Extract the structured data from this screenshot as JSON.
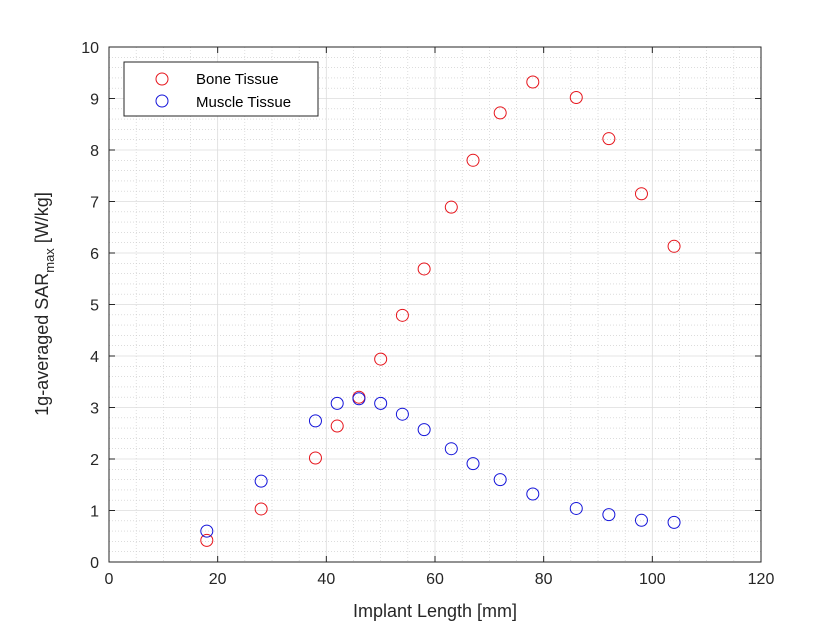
{
  "chart_data": {
    "type": "scatter",
    "xlabel": "Implant Length [mm]",
    "ylabel": {
      "main": "1g-averaged SAR",
      "subscript": "max",
      "unit": " [W/kg]"
    },
    "xlim": [
      0,
      120
    ],
    "ylim": [
      0,
      10
    ],
    "xticks": [
      0,
      20,
      40,
      60,
      80,
      100,
      120
    ],
    "yticks": [
      0,
      1,
      2,
      3,
      4,
      5,
      6,
      7,
      8,
      9,
      10
    ],
    "grid": true,
    "minor_grid": true,
    "legend_position": "top-left",
    "series": [
      {
        "name": "Bone Tissue",
        "color": "#e6141b",
        "marker": "circle",
        "x": [
          18,
          28,
          38,
          42,
          46,
          50,
          54,
          58,
          63,
          67,
          72,
          78,
          86,
          92,
          98,
          104
        ],
        "y": [
          0.42,
          1.03,
          2.02,
          2.64,
          3.2,
          3.94,
          4.79,
          5.69,
          6.89,
          7.8,
          8.72,
          9.32,
          9.02,
          8.22,
          7.15,
          6.13
        ]
      },
      {
        "name": "Muscle Tissue",
        "color": "#1414d9",
        "marker": "circle",
        "x": [
          18,
          28,
          38,
          42,
          46,
          50,
          54,
          58,
          63,
          67,
          72,
          78,
          86,
          92,
          98,
          104
        ],
        "y": [
          0.6,
          1.57,
          2.74,
          3.08,
          3.17,
          3.08,
          2.87,
          2.57,
          2.2,
          1.91,
          1.6,
          1.32,
          1.04,
          0.92,
          0.81,
          0.77
        ]
      }
    ]
  }
}
